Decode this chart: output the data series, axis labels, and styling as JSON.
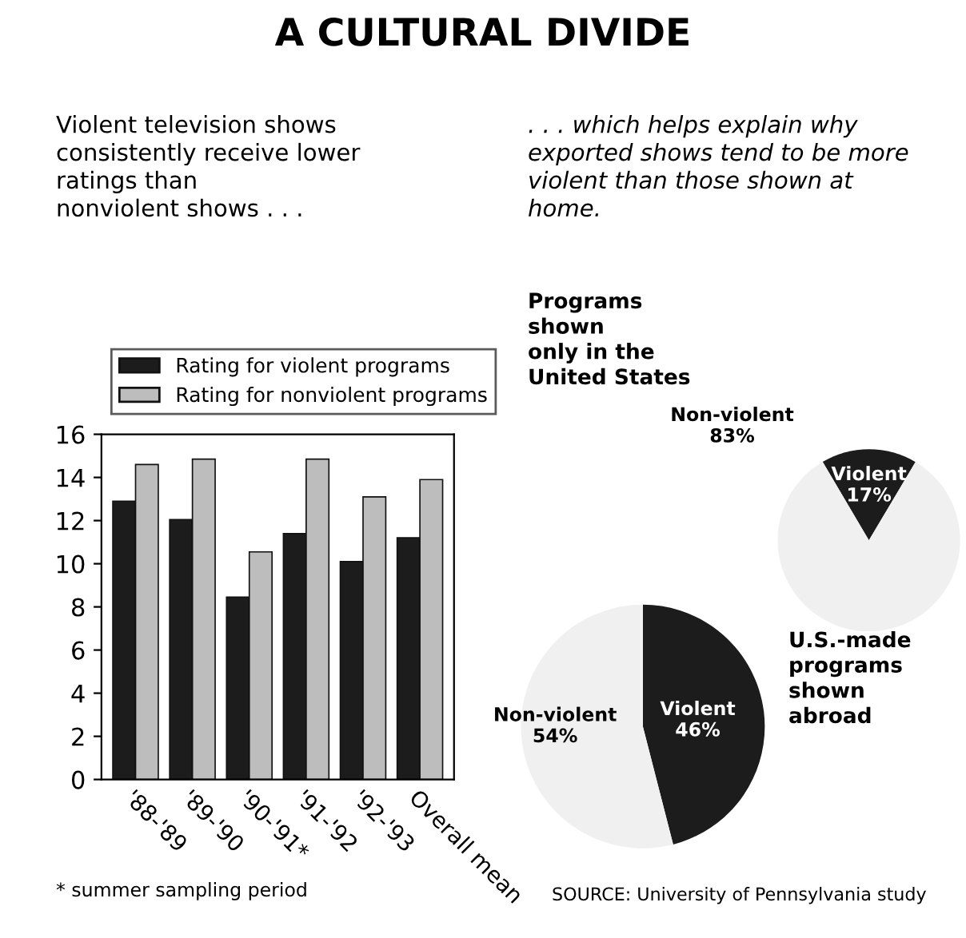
{
  "chart_data": [
    {
      "type": "bar",
      "title": "A CULTURAL DIVIDE",
      "subtitle": "Violent television shows\nconsistently receive lower\nratings than\nnonviolent shows . . .",
      "categories": [
        "'88-'89",
        "'89-'90",
        "'90-'91*",
        "'91-'92",
        "'92-'93",
        "Overall mean"
      ],
      "series": [
        {
          "name": "Rating for violent programs",
          "color": "#1c1c1c",
          "values": [
            12.9,
            12.05,
            8.45,
            11.4,
            10.1,
            11.2
          ]
        },
        {
          "name": "Rating for nonviolent programs",
          "color": "#bdbdbd",
          "values": [
            14.6,
            14.85,
            10.55,
            14.85,
            13.1,
            13.9
          ]
        }
      ],
      "ylim": [
        0,
        16
      ],
      "yticks": [
        0,
        2,
        4,
        6,
        8,
        10,
        12,
        14,
        16
      ],
      "grid": false,
      "legend": "top",
      "annotations": [
        "* summer sampling period"
      ]
    },
    {
      "type": "pie",
      "subtitle": ". . . which helps explain why\nexported shows tend to be more\nviolent than those shown at\nhome.",
      "title": "Programs\nshown\nonly in the\nUnited States",
      "categories": [
        "Violent",
        "Non-violent"
      ],
      "values": [
        17,
        83
      ],
      "colors": [
        "#1c1c1c",
        "#f0f0f0"
      ],
      "value_labels": [
        "17%",
        "83%"
      ]
    },
    {
      "type": "pie",
      "title": "U.S.-made\nprograms\nshown\nabroad",
      "categories": [
        "Violent",
        "Non-violent"
      ],
      "values": [
        46,
        54
      ],
      "colors": [
        "#1c1c1c",
        "#f0f0f0"
      ],
      "value_labels": [
        "46%",
        "54%"
      ],
      "annotations": [
        "SOURCE: University of Pennsylvania study"
      ]
    }
  ]
}
